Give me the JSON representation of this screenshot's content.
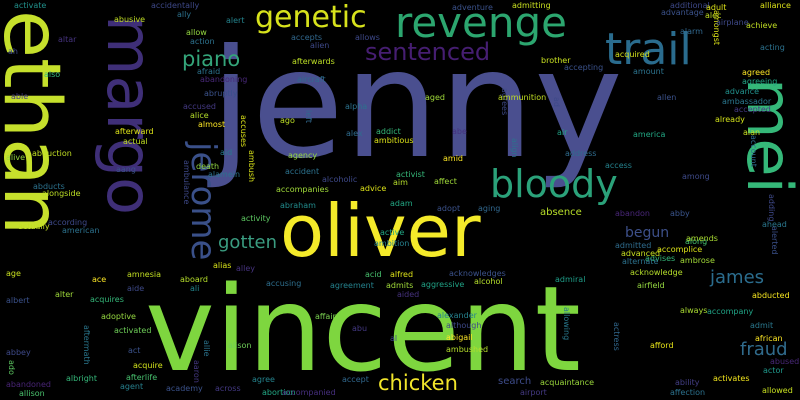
{
  "words": [
    {
      "text": "jenny",
      "color": "#4a4f8f",
      "size": "large"
    },
    {
      "text": "vincent",
      "color": "#7ed63f",
      "size": "large"
    },
    {
      "text": "ethan",
      "color": "#c6e02c",
      "size": "large"
    },
    {
      "text": "oliver",
      "color": "#f4ea2a",
      "size": "large"
    },
    {
      "text": "margo",
      "color": "#3f2f78",
      "size": "large"
    },
    {
      "text": "revenge",
      "color": "#2ca66f",
      "size": "large"
    },
    {
      "text": "mei",
      "color": "#35b879",
      "size": "large"
    },
    {
      "text": "trail",
      "color": "#2a6c8e",
      "size": "large"
    },
    {
      "text": "bloody",
      "color": "#2ba27a",
      "size": "large"
    },
    {
      "text": "jerome",
      "color": "#3a5089",
      "size": "large"
    },
    {
      "text": "genetic",
      "color": "#d7e21c",
      "size": "medium"
    },
    {
      "text": "sentenced",
      "color": "#461e72",
      "size": "medium"
    },
    {
      "text": "piano",
      "color": "#34a57a",
      "size": "medium"
    },
    {
      "text": "gotten",
      "color": "#3a9c80",
      "size": "medium"
    },
    {
      "text": "james",
      "color": "#2b6d8e",
      "size": "medium"
    },
    {
      "text": "fraud",
      "color": "#306b8c",
      "size": "medium"
    },
    {
      "text": "chicken",
      "color": "#f1e52b",
      "size": "medium"
    },
    {
      "text": "begun",
      "color": "#3d508a",
      "size": "medium"
    },
    {
      "text": "absence",
      "color": "#b8de29",
      "size": "small"
    },
    {
      "text": "abandon",
      "color": "#482677",
      "size": "small"
    },
    {
      "text": "abby",
      "color": "#3a548c",
      "size": "small"
    },
    {
      "text": "along",
      "color": "#46c06f",
      "size": "small"
    },
    {
      "text": "amends",
      "color": "#aadc32",
      "size": "small"
    },
    {
      "text": "allowed",
      "color": "#c8e020",
      "size": "small"
    },
    {
      "text": "abducted",
      "color": "#f6e620",
      "size": "small"
    },
    {
      "text": "acknowledge",
      "color": "#b5de2b",
      "size": "small"
    },
    {
      "text": "advises",
      "color": "#35b779",
      "size": "small"
    },
    {
      "text": "ambrose",
      "color": "#a2da37",
      "size": "small"
    },
    {
      "text": "airfield",
      "color": "#95d840",
      "size": "small"
    },
    {
      "text": "always",
      "color": "#aadc32",
      "size": "small"
    },
    {
      "text": "accompany",
      "color": "#20a486",
      "size": "small"
    },
    {
      "text": "admit",
      "color": "#2a788e",
      "size": "small"
    },
    {
      "text": "african",
      "color": "#fde725",
      "size": "small"
    },
    {
      "text": "abused",
      "color": "#482878",
      "size": "small"
    },
    {
      "text": "actor",
      "color": "#1f988b",
      "size": "small"
    },
    {
      "text": "activates",
      "color": "#f1e51d",
      "size": "small"
    },
    {
      "text": "ability",
      "color": "#433e85",
      "size": "small"
    },
    {
      "text": "affection",
      "color": "#2c728e",
      "size": "small"
    },
    {
      "text": "airport",
      "color": "#443983",
      "size": "small"
    },
    {
      "text": "acquaintance",
      "color": "#9bd93c",
      "size": "small"
    },
    {
      "text": "search",
      "color": "#3e4c8a",
      "size": "small"
    },
    {
      "text": "accept",
      "color": "#31688e",
      "size": "small"
    },
    {
      "text": "afford",
      "color": "#e7e419",
      "size": "small"
    },
    {
      "text": "actress",
      "color": "#31688e",
      "size": "small"
    },
    {
      "text": "allowing",
      "color": "#29798e",
      "size": "small"
    },
    {
      "text": "alexander",
      "color": "#26828e",
      "size": "small"
    },
    {
      "text": "although",
      "color": "#3e4989",
      "size": "small"
    },
    {
      "text": "abigail",
      "color": "#fde725",
      "size": "small"
    },
    {
      "text": "ambushed",
      "color": "#b5de2b",
      "size": "small"
    },
    {
      "text": "admiral",
      "color": "#1f9e89",
      "size": "small"
    },
    {
      "text": "aided",
      "color": "#46327e",
      "size": "small"
    },
    {
      "text": "alcohol",
      "color": "#b5de2b",
      "size": "small"
    },
    {
      "text": "aggressive",
      "color": "#20a386",
      "size": "small"
    },
    {
      "text": "admits",
      "color": "#a0da39",
      "size": "small"
    },
    {
      "text": "acknowledges",
      "color": "#3b528b",
      "size": "small"
    },
    {
      "text": "alfred",
      "color": "#dde318",
      "size": "small"
    },
    {
      "text": "acid",
      "color": "#48c16e",
      "size": "small"
    },
    {
      "text": "agreement",
      "color": "#25838e",
      "size": "small"
    },
    {
      "text": "accusing",
      "color": "#2e6f8e",
      "size": "small"
    },
    {
      "text": "affair",
      "color": "#7ad151",
      "size": "small"
    },
    {
      "text": "abu",
      "color": "#443983",
      "size": "small"
    },
    {
      "text": "al",
      "color": "#3e4989",
      "size": "small"
    },
    {
      "text": "ambition",
      "color": "#26828e",
      "size": "small"
    },
    {
      "text": "active",
      "color": "#22a884",
      "size": "small"
    },
    {
      "text": "adam",
      "color": "#22a884",
      "size": "small"
    },
    {
      "text": "abraham",
      "color": "#228c8d",
      "size": "small"
    },
    {
      "text": "activity",
      "color": "#5ec962",
      "size": "small"
    },
    {
      "text": "alias",
      "color": "#d8e219",
      "size": "small"
    },
    {
      "text": "alley",
      "color": "#46337f",
      "size": "small"
    },
    {
      "text": "aboard",
      "color": "#b5de2b",
      "size": "small"
    },
    {
      "text": "ali",
      "color": "#24868e",
      "size": "small"
    },
    {
      "text": "amnesia",
      "color": "#c2df23",
      "size": "small"
    },
    {
      "text": "ace",
      "color": "#fde725",
      "size": "small"
    },
    {
      "text": "aide",
      "color": "#3e4a89",
      "size": "small"
    },
    {
      "text": "acquires",
      "color": "#35b779",
      "size": "small"
    },
    {
      "text": "alter",
      "color": "#9fda3a",
      "size": "small"
    },
    {
      "text": "albert",
      "color": "#3b528b",
      "size": "small"
    },
    {
      "text": "adoptive",
      "color": "#95d840",
      "size": "small"
    },
    {
      "text": "activated",
      "color": "#6ece58",
      "size": "small"
    },
    {
      "text": "act",
      "color": "#3b528b",
      "size": "small"
    },
    {
      "text": "acquire",
      "color": "#d2e21b",
      "size": "small"
    },
    {
      "text": "afterlife",
      "color": "#48c16e",
      "size": "small"
    },
    {
      "text": "albright",
      "color": "#35b779",
      "size": "small"
    },
    {
      "text": "agent",
      "color": "#27808e",
      "size": "small"
    },
    {
      "text": "academy",
      "color": "#3b528b",
      "size": "small"
    },
    {
      "text": "across",
      "color": "#443983",
      "size": "small"
    },
    {
      "text": "abortion",
      "color": "#22a884",
      "size": "small"
    },
    {
      "text": "agree",
      "color": "#25848e",
      "size": "small"
    },
    {
      "text": "alison",
      "color": "#6ece58",
      "size": "small"
    },
    {
      "text": "accompanied",
      "color": "#462f7e",
      "size": "small"
    },
    {
      "text": "abandoned",
      "color": "#482475",
      "size": "small"
    },
    {
      "text": "allison",
      "color": "#4ac16d",
      "size": "small"
    },
    {
      "text": "abbey",
      "color": "#3e4989",
      "size": "small"
    },
    {
      "text": "aftermath",
      "color": "#2a778e",
      "size": "small"
    },
    {
      "text": "aaron",
      "color": "#453882",
      "size": "small"
    },
    {
      "text": "allie",
      "color": "#2b748e",
      "size": "small"
    },
    {
      "text": "ado",
      "color": "#5ec962",
      "size": "small"
    },
    {
      "text": "acquired",
      "color": "#d5e21a",
      "size": "small"
    },
    {
      "text": "amount",
      "color": "#2c738e",
      "size": "small"
    },
    {
      "text": "agreed",
      "color": "#fde725",
      "size": "small"
    },
    {
      "text": "agreeing",
      "color": "#22a785",
      "size": "small"
    },
    {
      "text": "advance",
      "color": "#21918c",
      "size": "small"
    },
    {
      "text": "ambassador",
      "color": "#2a778e",
      "size": "small"
    },
    {
      "text": "accepted",
      "color": "#443a83",
      "size": "small"
    },
    {
      "text": "allen",
      "color": "#3b528b",
      "size": "small"
    },
    {
      "text": "already",
      "color": "#d2e21b",
      "size": "small"
    },
    {
      "text": "alan",
      "color": "#c8e020",
      "size": "small"
    },
    {
      "text": "account",
      "color": "#2f6c8e",
      "size": "small"
    },
    {
      "text": "adding",
      "color": "#3e4989",
      "size": "small"
    },
    {
      "text": "ahead",
      "color": "#2a778e",
      "size": "small"
    },
    {
      "text": "alerted",
      "color": "#3b518b",
      "size": "small"
    },
    {
      "text": "among",
      "color": "#3e4a89",
      "size": "small"
    },
    {
      "text": "access",
      "color": "#25838e",
      "size": "small"
    },
    {
      "text": "america",
      "color": "#22a884",
      "size": "small"
    },
    {
      "text": "adopt",
      "color": "#3b528b",
      "size": "small"
    },
    {
      "text": "aging",
      "color": "#31688e",
      "size": "small"
    },
    {
      "text": "affect",
      "color": "#a0da39",
      "size": "small"
    },
    {
      "text": "amid",
      "color": "#fde725",
      "size": "small"
    },
    {
      "text": "air",
      "color": "#20a386",
      "size": "small"
    },
    {
      "text": "address",
      "color": "#2f6c8e",
      "size": "small"
    },
    {
      "text": "align",
      "color": "#2c728e",
      "size": "small"
    },
    {
      "text": "agrees",
      "color": "#3e4a89",
      "size": "small"
    },
    {
      "text": "ad",
      "color": "#3e4989",
      "size": "small"
    },
    {
      "text": "abe",
      "color": "#46337f",
      "size": "small"
    },
    {
      "text": "aim",
      "color": "#b5de2b",
      "size": "small"
    },
    {
      "text": "advice",
      "color": "#dde318",
      "size": "small"
    },
    {
      "text": "activist",
      "color": "#35b779",
      "size": "small"
    },
    {
      "text": "alcoholic",
      "color": "#3e4989",
      "size": "small"
    },
    {
      "text": "accident",
      "color": "#2c728e",
      "size": "small"
    },
    {
      "text": "accompanies",
      "color": "#a0da39",
      "size": "small"
    },
    {
      "text": "agency",
      "color": "#95d840",
      "size": "small"
    },
    {
      "text": "alex",
      "color": "#2f6c8e",
      "size": "small"
    },
    {
      "text": "addict",
      "color": "#35b779",
      "size": "small"
    },
    {
      "text": "ambitious",
      "color": "#dde318",
      "size": "small"
    },
    {
      "text": "alpha",
      "color": "#2c728e",
      "size": "small"
    },
    {
      "text": "left",
      "color": "#31688e",
      "size": "small"
    },
    {
      "text": "ago",
      "color": "#bddf26",
      "size": "small"
    },
    {
      "text": "ambush",
      "color": "#d8e219",
      "size": "small"
    },
    {
      "text": "aid",
      "color": "#2a788e",
      "size": "small"
    },
    {
      "text": "death",
      "color": "#90d743",
      "size": "small"
    },
    {
      "text": "alamein",
      "color": "#2c728e",
      "size": "small"
    },
    {
      "text": "ambulance",
      "color": "#3e4989",
      "size": "small"
    },
    {
      "text": "aang",
      "color": "#3b528b",
      "size": "small"
    },
    {
      "text": "accuses",
      "color": "#dde318",
      "size": "small"
    },
    {
      "text": "almost",
      "color": "#fde725",
      "size": "small"
    },
    {
      "text": "accused",
      "color": "#443983",
      "size": "small"
    },
    {
      "text": "alice",
      "color": "#b5de2b",
      "size": "small"
    },
    {
      "text": "afterward",
      "color": "#dde318",
      "size": "small"
    },
    {
      "text": "actual",
      "color": "#c2df23",
      "size": "small"
    },
    {
      "text": "abruptly",
      "color": "#3b528b",
      "size": "small"
    },
    {
      "text": "afraid",
      "color": "#2c728e",
      "size": "small"
    },
    {
      "text": "abandoning",
      "color": "#482878",
      "size": "small"
    },
    {
      "text": "accidentally",
      "color": "#3e4989",
      "size": "small"
    },
    {
      "text": "abusive",
      "color": "#c2df23",
      "size": "small"
    },
    {
      "text": "ally",
      "color": "#2c728e",
      "size": "small"
    },
    {
      "text": "alert",
      "color": "#25848e",
      "size": "small"
    },
    {
      "text": "allow",
      "color": "#95d840",
      "size": "small"
    },
    {
      "text": "action",
      "color": "#2c728e",
      "size": "small"
    },
    {
      "text": "activate",
      "color": "#21918c",
      "size": "small"
    },
    {
      "text": "altar",
      "color": "#46337f",
      "size": "small"
    },
    {
      "text": "ah",
      "color": "#3e4989",
      "size": "small"
    },
    {
      "text": "also",
      "color": "#35b779",
      "size": "small"
    },
    {
      "text": "able",
      "color": "#443983",
      "size": "small"
    },
    {
      "text": "alive",
      "color": "#95d840",
      "size": "small"
    },
    {
      "text": "abduction",
      "color": "#c2df23",
      "size": "small"
    },
    {
      "text": "abducts",
      "color": "#2c728e",
      "size": "small"
    },
    {
      "text": "alongside",
      "color": "#bddf26",
      "size": "small"
    },
    {
      "text": "according",
      "color": "#3e4989",
      "size": "small"
    },
    {
      "text": "american",
      "color": "#2c728e",
      "size": "small"
    },
    {
      "text": "actually",
      "color": "#c2df23",
      "size": "small"
    },
    {
      "text": "age",
      "color": "#c8e020",
      "size": "small"
    },
    {
      "text": "aircraft",
      "color": "#2f6c8e",
      "size": "small"
    },
    {
      "text": "alien",
      "color": "#3e4989",
      "size": "small"
    },
    {
      "text": "accepts",
      "color": "#31688e",
      "size": "small"
    },
    {
      "text": "allows",
      "color": "#3e4989",
      "size": "small"
    },
    {
      "text": "adventure",
      "color": "#3b528b",
      "size": "small"
    },
    {
      "text": "admitting",
      "color": "#c8e020",
      "size": "small"
    },
    {
      "text": "aged",
      "color": "#a0da39",
      "size": "small"
    },
    {
      "text": "ammunition",
      "color": "#c2df23",
      "size": "small"
    },
    {
      "text": "brother",
      "color": "#c8e020",
      "size": "small"
    },
    {
      "text": "accepting",
      "color": "#3b528b",
      "size": "small"
    },
    {
      "text": "afterwards",
      "color": "#bddf26",
      "size": "small"
    },
    {
      "text": "additional",
      "color": "#3e4989",
      "size": "small"
    },
    {
      "text": "advantage",
      "color": "#3b528b",
      "size": "small"
    },
    {
      "text": "adult",
      "color": "#dde318",
      "size": "small"
    },
    {
      "text": "alec",
      "color": "#c2df23",
      "size": "small"
    },
    {
      "text": "alliance",
      "color": "#dde318",
      "size": "small"
    },
    {
      "text": "amongst",
      "color": "#dde318",
      "size": "small"
    },
    {
      "text": "airplane",
      "color": "#3e4989",
      "size": "small"
    },
    {
      "text": "alarm",
      "color": "#31688e",
      "size": "small"
    },
    {
      "text": "achieve",
      "color": "#c2df23",
      "size": "small"
    },
    {
      "text": "acting",
      "color": "#2c728e",
      "size": "small"
    },
    {
      "text": "admitted",
      "color": "#2f6c8e",
      "size": "small"
    },
    {
      "text": "advanced",
      "color": "#c8e020",
      "size": "small"
    },
    {
      "text": "alternate",
      "color": "#2c728e",
      "size": "small"
    },
    {
      "text": "accomplice",
      "color": "#dde318",
      "size": "small"
    }
  ]
}
